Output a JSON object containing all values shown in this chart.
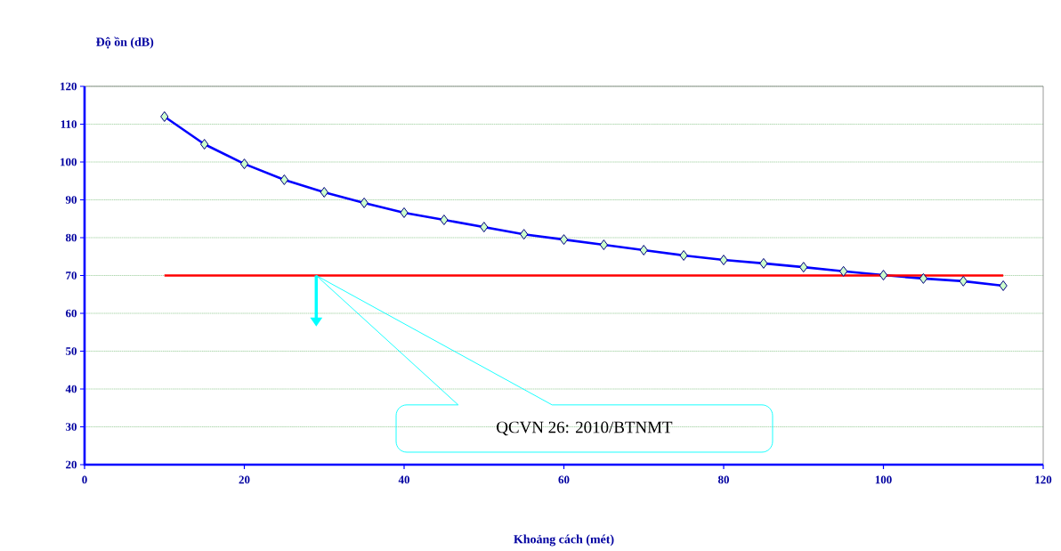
{
  "chart_data": {
    "type": "line",
    "xlabel": "Khoảng cách (mét)",
    "ylabel": "Độ ồn (dB)",
    "x": [
      10,
      15,
      20,
      25,
      30,
      35,
      40,
      45,
      50,
      55,
      60,
      65,
      70,
      75,
      80,
      85,
      90,
      95,
      100,
      105,
      110,
      115
    ],
    "series": [
      {
        "color": "#0000ff",
        "values": [
          112,
          104.7,
          99.5,
          95.3,
          92,
          89.2,
          86.6,
          84.7,
          82.8,
          80.9,
          79.5,
          78.1,
          76.7,
          75.3,
          74.1,
          73.2,
          72.2,
          71.1,
          70.1,
          69.2,
          68.5,
          67.3
        ]
      },
      {
        "color": "#ff0000",
        "x": [
          10,
          115
        ],
        "values": [
          70,
          70
        ],
        "marker": "none"
      }
    ],
    "marker": "diamond",
    "grid": "y",
    "xlim": [
      0,
      120
    ],
    "ylim": [
      20,
      120
    ],
    "xticks": [
      0,
      20,
      40,
      60,
      80,
      100,
      120
    ],
    "yticks": [
      20,
      30,
      40,
      50,
      60,
      70,
      80,
      90,
      100,
      110,
      120
    ],
    "annotations": [
      "QCVN 26: 2010/BTNMT"
    ]
  }
}
